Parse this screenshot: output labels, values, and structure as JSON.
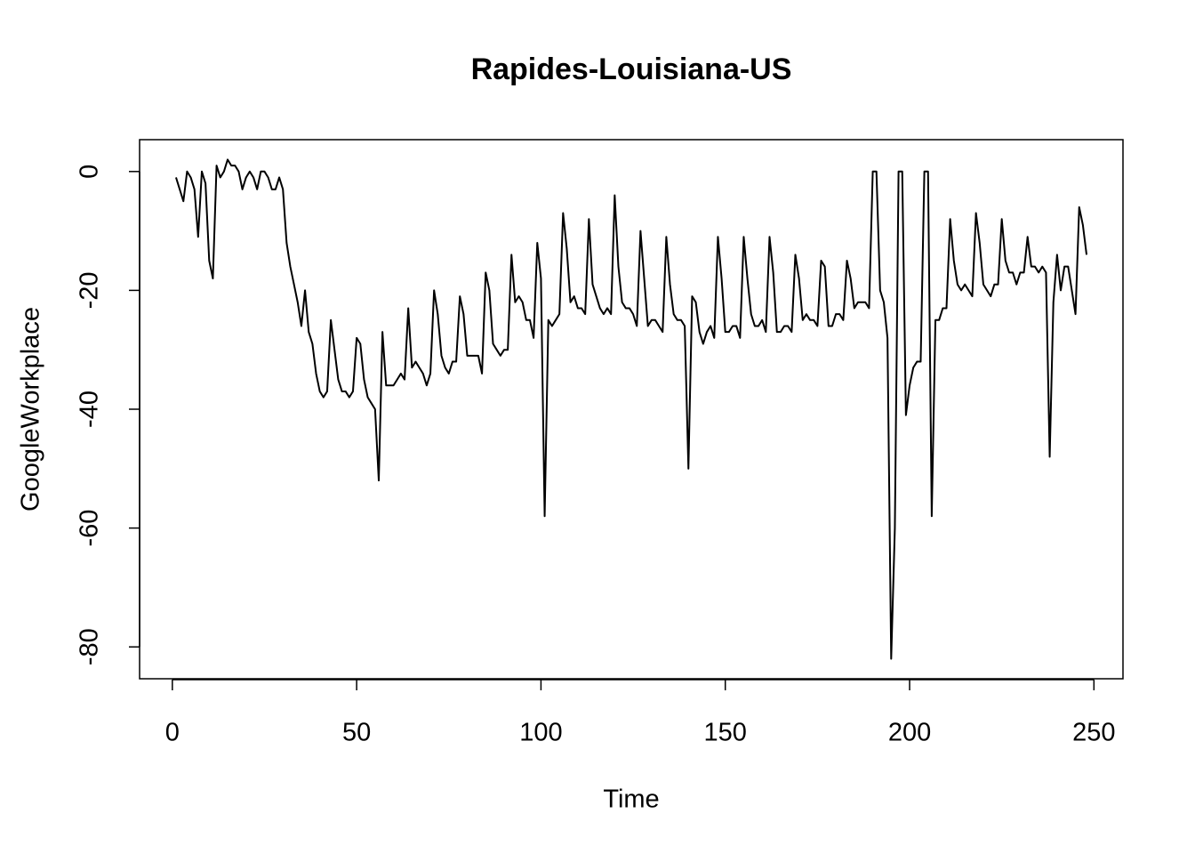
{
  "chart_data": {
    "type": "line",
    "title": "Rapides-Louisiana-US",
    "x_label": "Time",
    "y_label": "GoogleWorkplace",
    "x": [
      1,
      2,
      3,
      4,
      5,
      6,
      7,
      8,
      9,
      10,
      11,
      12,
      13,
      14,
      15,
      16,
      17,
      18,
      19,
      20,
      21,
      22,
      23,
      24,
      25,
      26,
      27,
      28,
      29,
      30,
      31,
      32,
      33,
      34,
      35,
      36,
      37,
      38,
      39,
      40,
      41,
      42,
      43,
      44,
      45,
      46,
      47,
      48,
      49,
      50,
      51,
      52,
      53,
      54,
      55,
      56,
      57,
      58,
      59,
      60,
      61,
      62,
      63,
      64,
      65,
      66,
      67,
      68,
      69,
      70,
      71,
      72,
      73,
      74,
      75,
      76,
      77,
      78,
      79,
      80,
      81,
      82,
      83,
      84,
      85,
      86,
      87,
      88,
      89,
      90,
      91,
      92,
      93,
      94,
      95,
      96,
      97,
      98,
      99,
      100,
      101,
      102,
      103,
      104,
      105,
      106,
      107,
      108,
      109,
      110,
      111,
      112,
      113,
      114,
      115,
      116,
      117,
      118,
      119,
      120,
      121,
      122,
      123,
      124,
      125,
      126,
      127,
      128,
      129,
      130,
      131,
      132,
      133,
      134,
      135,
      136,
      137,
      138,
      139,
      140,
      141,
      142,
      143,
      144,
      145,
      146,
      147,
      148,
      149,
      150,
      151,
      152,
      153,
      154,
      155,
      156,
      157,
      158,
      159,
      160,
      161,
      162,
      163,
      164,
      165,
      166,
      167,
      168,
      169,
      170,
      171,
      172,
      173,
      174,
      175,
      176,
      177,
      178,
      179,
      180,
      181,
      182,
      183,
      184,
      185,
      186,
      187,
      188,
      189,
      190,
      191,
      192,
      193,
      194,
      195,
      196,
      197,
      198,
      199,
      200,
      201,
      202,
      203,
      204,
      205,
      206,
      207,
      208,
      209,
      210,
      211,
      212,
      213,
      214,
      215,
      216,
      217,
      218,
      219,
      220,
      221,
      222,
      223,
      224,
      225,
      226,
      227,
      228,
      229,
      230,
      231,
      232,
      233,
      234,
      235,
      236,
      237,
      238,
      239,
      240,
      241,
      242,
      243,
      244,
      245,
      246,
      247,
      248
    ],
    "series": [
      {
        "name": "GoogleWorkplace",
        "color": "#000000",
        "values": [
          -1,
          -3,
          -5,
          0,
          -1,
          -3,
          -11,
          0,
          -2,
          -15,
          -18,
          1,
          -1,
          0,
          2,
          1,
          1,
          0,
          -3,
          -1,
          0,
          -1,
          -3,
          0,
          0,
          -1,
          -3,
          -3,
          -1,
          -3,
          -12,
          -16,
          -19,
          -22,
          -26,
          -20,
          -27,
          -29,
          -34,
          -37,
          -38,
          -37,
          -25,
          -30,
          -35,
          -37,
          -37,
          -38,
          -37,
          -28,
          -29,
          -35,
          -38,
          -39,
          -40,
          -52,
          -27,
          -36,
          -36,
          -36,
          -35,
          -34,
          -35,
          -23,
          -33,
          -32,
          -33,
          -34,
          -36,
          -34,
          -20,
          -24,
          -31,
          -33,
          -34,
          -32,
          -32,
          -21,
          -24,
          -31,
          -31,
          -31,
          -31,
          -34,
          -17,
          -20,
          -29,
          -30,
          -31,
          -30,
          -30,
          -14,
          -22,
          -21,
          -22,
          -25,
          -25,
          -28,
          -12,
          -18,
          -58,
          -25,
          -26,
          -25,
          -24,
          -7,
          -13,
          -22,
          -21,
          -23,
          -23,
          -24,
          -8,
          -19,
          -21,
          -23,
          -24,
          -23,
          -24,
          -4,
          -16,
          -22,
          -23,
          -23,
          -24,
          -26,
          -10,
          -18,
          -26,
          -25,
          -25,
          -26,
          -27,
          -11,
          -19,
          -24,
          -25,
          -25,
          -26,
          -50,
          -21,
          -22,
          -27,
          -29,
          -27,
          -26,
          -28,
          -11,
          -18,
          -27,
          -27,
          -26,
          -26,
          -28,
          -11,
          -18,
          -24,
          -26,
          -26,
          -25,
          -27,
          -11,
          -17,
          -27,
          -27,
          -26,
          -26,
          -27,
          -14,
          -18,
          -25,
          -24,
          -25,
          -25,
          -26,
          -15,
          -16,
          -26,
          -26,
          -24,
          -24,
          -25,
          -15,
          -18,
          -23,
          -22,
          -22,
          -22,
          -23,
          0,
          0,
          -20,
          -22,
          -28,
          -82,
          -60,
          0,
          0,
          -41,
          -36,
          -33,
          -32,
          -32,
          0,
          0,
          -58,
          -25,
          -25,
          -23,
          -23,
          -8,
          -15,
          -19,
          -20,
          -19,
          -20,
          -21,
          -7,
          -12,
          -19,
          -20,
          -21,
          -19,
          -19,
          -8,
          -15,
          -17,
          -17,
          -19,
          -17,
          -17,
          -11,
          -16,
          -16,
          -17,
          -16,
          -17,
          -48,
          -22,
          -14,
          -20,
          -16,
          -16,
          -20,
          -24,
          -6,
          -9,
          -14
        ]
      }
    ],
    "xlim": [
      -8.88,
      257.88
    ],
    "ylim": [
      -85.36,
      5.36
    ],
    "xticks": [
      0,
      50,
      100,
      150,
      200,
      250
    ],
    "yticks": [
      0,
      -20,
      -40,
      -60,
      -80
    ],
    "grid": false
  }
}
